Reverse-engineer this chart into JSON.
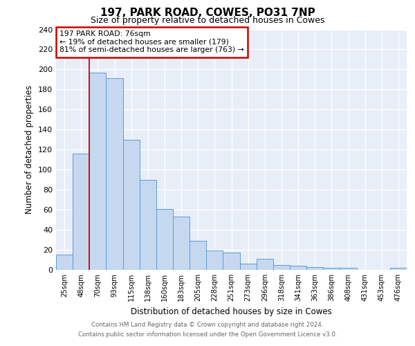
{
  "title": "197, PARK ROAD, COWES, PO31 7NP",
  "subtitle": "Size of property relative to detached houses in Cowes",
  "xlabel": "Distribution of detached houses by size in Cowes",
  "ylabel": "Number of detached properties",
  "categories": [
    "25sqm",
    "48sqm",
    "70sqm",
    "93sqm",
    "115sqm",
    "138sqm",
    "160sqm",
    "183sqm",
    "205sqm",
    "228sqm",
    "251sqm",
    "273sqm",
    "296sqm",
    "318sqm",
    "341sqm",
    "363sqm",
    "386sqm",
    "408sqm",
    "431sqm",
    "453sqm",
    "476sqm"
  ],
  "values": [
    15,
    116,
    197,
    191,
    130,
    90,
    61,
    53,
    29,
    19,
    17,
    6,
    11,
    5,
    4,
    3,
    2,
    2,
    0,
    0,
    2
  ],
  "bar_color": "#c5d8f0",
  "bar_edge_color": "#5b9bd5",
  "background_color": "#e8eef8",
  "grid_color": "#ffffff",
  "annotation_title": "197 PARK ROAD: 76sqm",
  "annotation_line1": "← 19% of detached houses are smaller (179)",
  "annotation_line2": "81% of semi-detached houses are larger (763) →",
  "annotation_box_color": "#ffffff",
  "annotation_border_color": "#cc0000",
  "red_line_color": "#cc0000",
  "ylim": [
    0,
    240
  ],
  "yticks": [
    0,
    20,
    40,
    60,
    80,
    100,
    120,
    140,
    160,
    180,
    200,
    220,
    240
  ],
  "footer_line1": "Contains HM Land Registry data © Crown copyright and database right 2024.",
  "footer_line2": "Contains public sector information licensed under the Open Government Licence v3.0."
}
